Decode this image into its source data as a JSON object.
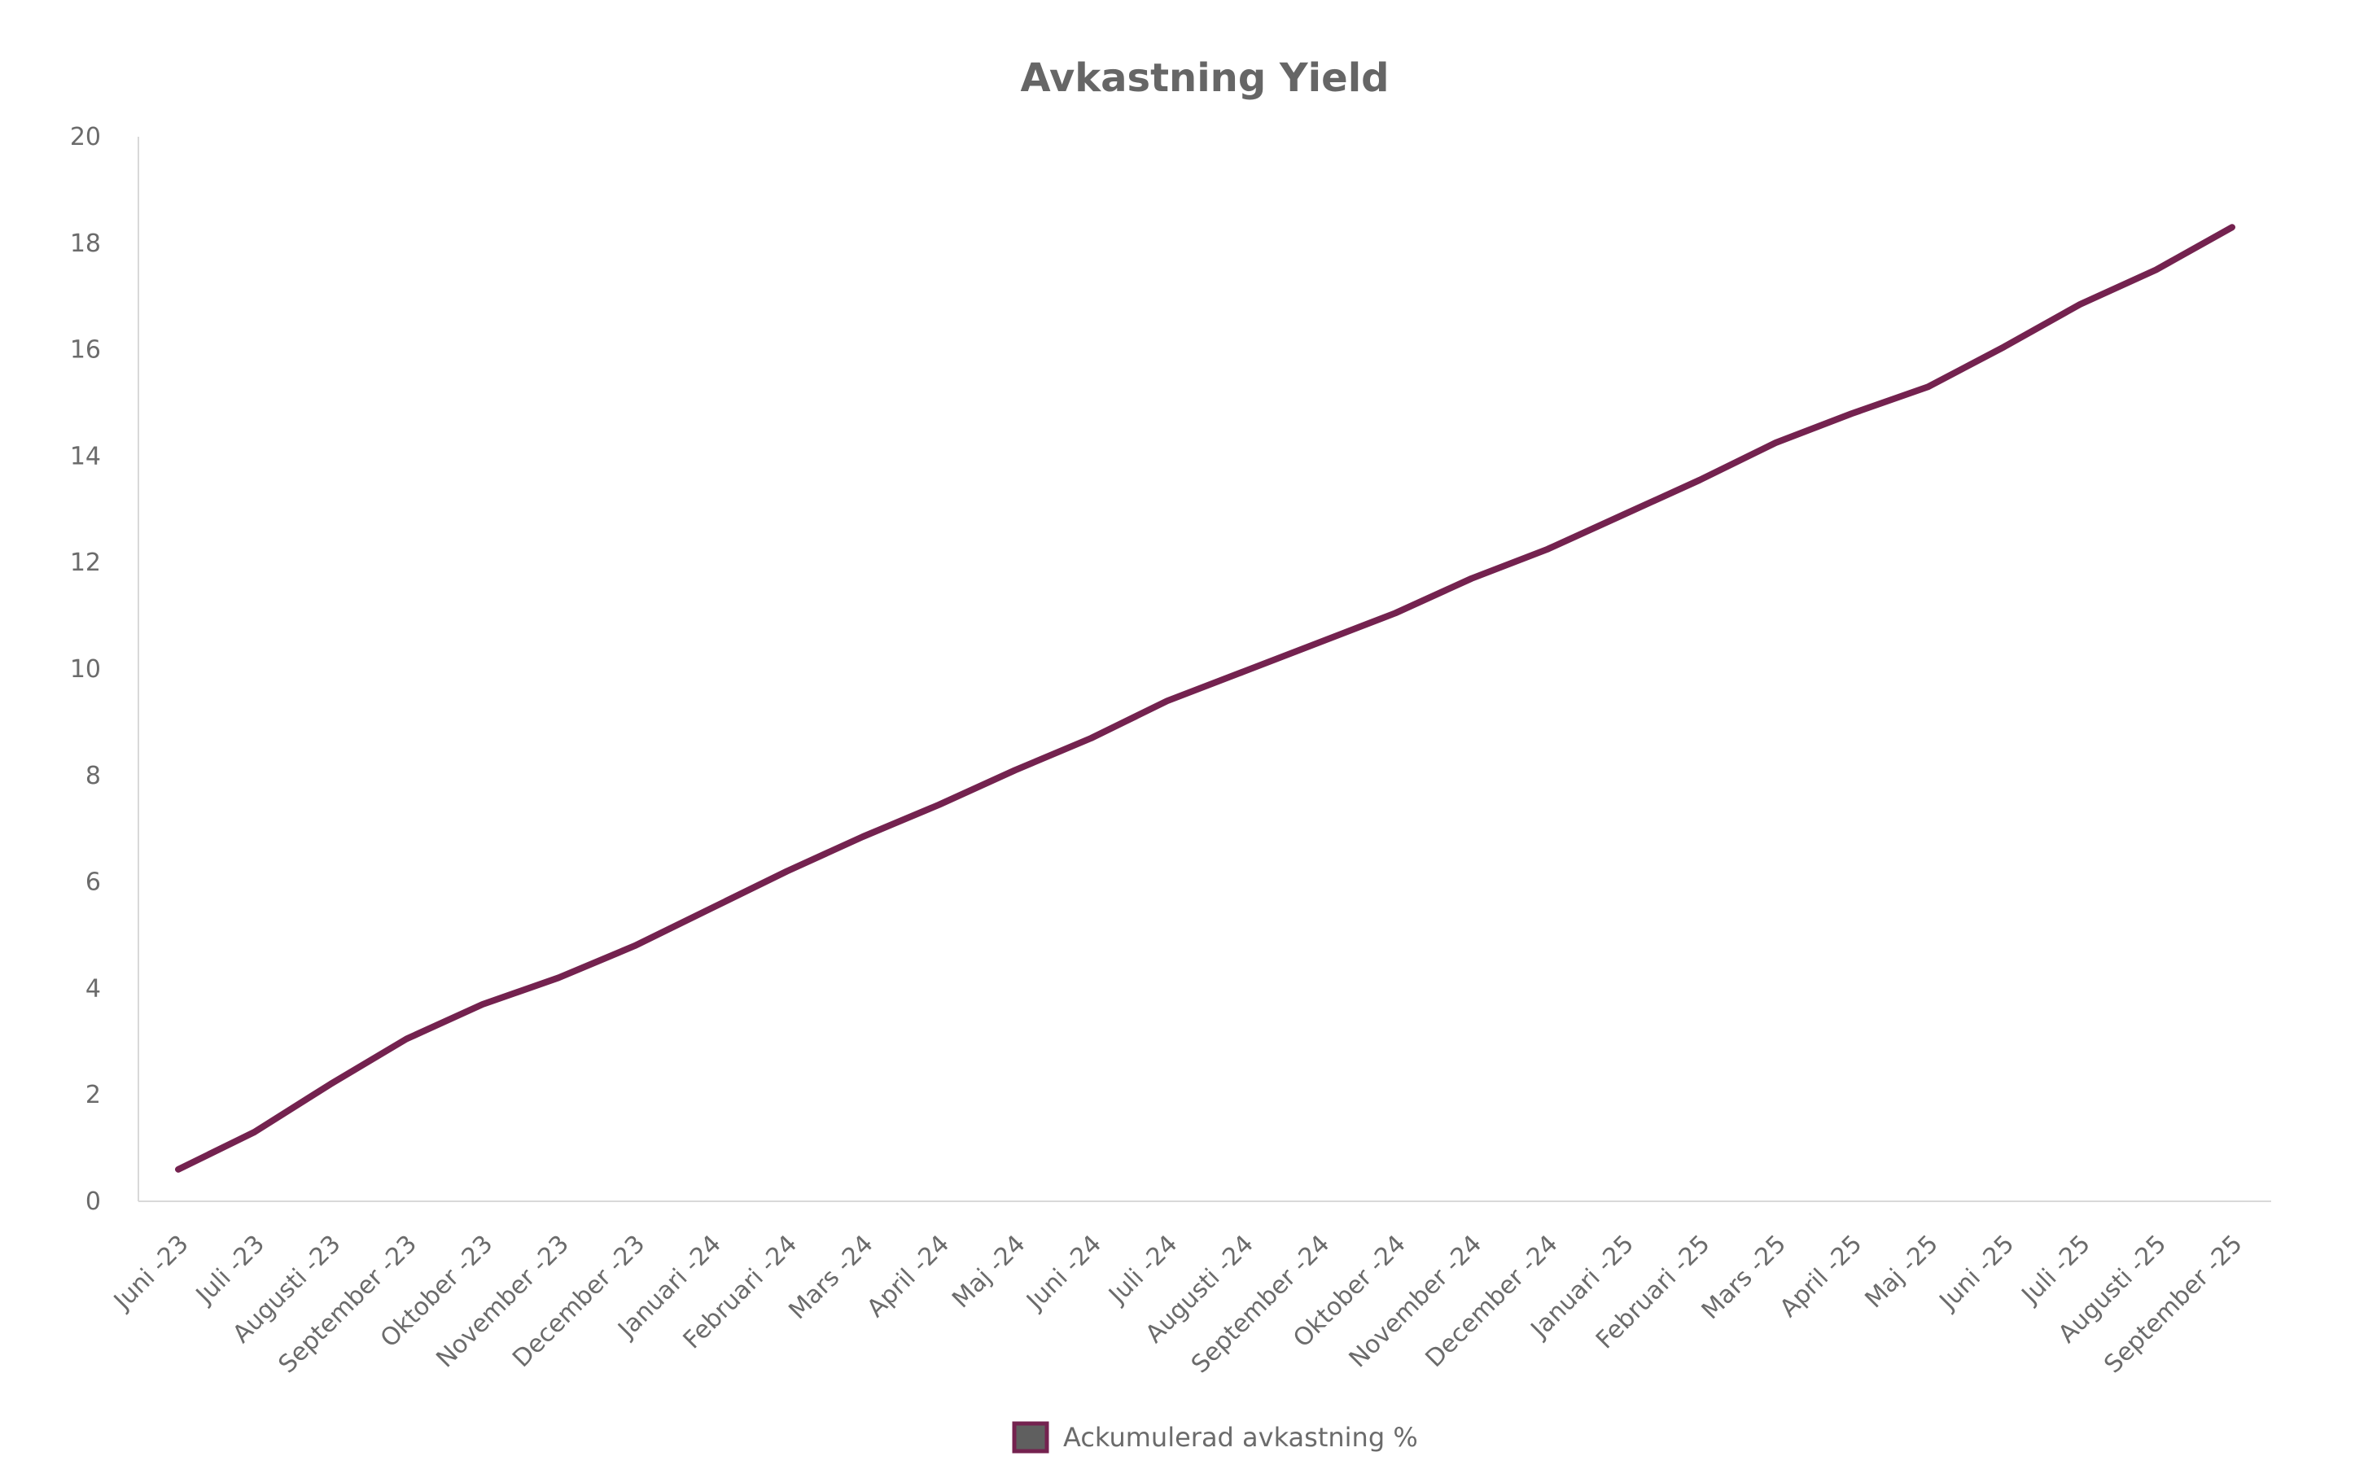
{
  "chart_data": {
    "type": "line",
    "title": "Avkastning Yield",
    "xlabel": "",
    "ylabel": "",
    "ylim": [
      0,
      20
    ],
    "y_ticks": [
      "0",
      "2",
      "4",
      "6",
      "8",
      "10",
      "12",
      "14",
      "16",
      "18",
      "20"
    ],
    "grid": false,
    "legend_position": "bottom",
    "categories": [
      "Juni -23",
      "Juli -23",
      "Augusti -23",
      "September -23",
      "Oktober -23",
      "November -23",
      "December -23",
      "Januari -24",
      "Februari -24",
      "Mars -24",
      "April -24",
      "Maj -24",
      "Juni -24",
      "Juli -24",
      "Augusti -24",
      "September -24",
      "Oktober -24",
      "November -24",
      "December -24",
      "Januari -25",
      "Februari -25",
      "Mars -25",
      "April -25",
      "Maj -25",
      "Juni -25",
      "Juli -25",
      "Augusti -25",
      "September -25"
    ],
    "series": [
      {
        "name": "Ackumulerad avkastning %",
        "color": "#74224f",
        "legend_fill": "#5f5f5f",
        "values": [
          0.6,
          1.3,
          2.2,
          3.05,
          3.7,
          4.2,
          4.8,
          5.5,
          6.2,
          6.85,
          7.45,
          8.1,
          8.7,
          9.4,
          9.95,
          10.5,
          11.05,
          11.7,
          12.25,
          12.9,
          13.55,
          14.25,
          14.8,
          15.3,
          16.05,
          16.85,
          17.5,
          18.3
        ]
      }
    ]
  }
}
